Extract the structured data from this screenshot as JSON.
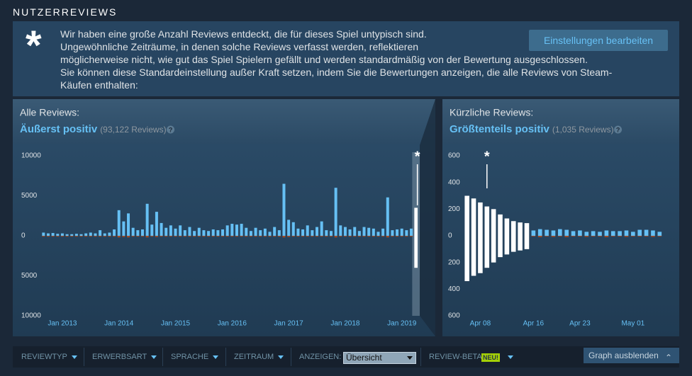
{
  "header": {
    "title": "NUTZERREVIEWS"
  },
  "notice": {
    "icon": "*",
    "lines": [
      "Wir haben eine große Anzahl Reviews entdeckt, die für dieses Spiel untypisch sind.",
      "Ungewöhnliche Zeiträume, in denen solche Reviews verfasst werden, reflektieren",
      "möglicherweise nicht, wie gut das Spiel Spielern gefällt und werden standardmäßig von der Bewertung ausgeschlossen.",
      "Sie können diese Standardeinstellung außer Kraft setzen, indem Sie die Bewertungen anzeigen, die alle Reviews von Steam-",
      "Käufen enthalten:"
    ],
    "button": "Einstellungen bearbeiten"
  },
  "panels": [
    {
      "label": "Alle Reviews:",
      "rating": "Äußerst positiv",
      "count": "(93,122 Reviews)",
      "help_icon": "?",
      "chart": {
        "type": "bar",
        "marker": "*",
        "highlight_band": true,
        "highlight_color": "#ffffff",
        "ylim": [
          -10000,
          10000
        ],
        "yticks": [
          10000,
          5000,
          0,
          {
            "value": -5000,
            "label": "5000"
          },
          {
            "value": -10000,
            "label": "10000"
          }
        ],
        "categories": [
          null,
          null,
          null,
          null,
          "Jan 2013",
          null,
          null,
          null,
          null,
          null,
          null,
          null,
          null,
          null,
          null,
          null,
          "Jan 2014",
          null,
          null,
          null,
          null,
          null,
          null,
          null,
          null,
          null,
          null,
          null,
          "Jan 2015",
          null,
          null,
          null,
          null,
          null,
          null,
          null,
          null,
          null,
          null,
          null,
          "Jan 2016",
          null,
          null,
          null,
          null,
          null,
          null,
          null,
          null,
          null,
          null,
          null,
          "Jan 2017",
          null,
          null,
          null,
          null,
          null,
          null,
          null,
          null,
          null,
          null,
          null,
          "Jan 2018",
          null,
          null,
          null,
          null,
          null,
          null,
          null,
          null,
          null,
          null,
          null,
          "Jan 2019",
          null,
          null,
          null
        ],
        "highlighted": [
          false,
          false,
          false,
          false,
          false,
          false,
          false,
          false,
          false,
          false,
          false,
          false,
          false,
          false,
          false,
          false,
          false,
          false,
          false,
          false,
          false,
          false,
          false,
          false,
          false,
          false,
          false,
          false,
          false,
          false,
          false,
          false,
          false,
          false,
          false,
          false,
          false,
          false,
          false,
          false,
          false,
          false,
          false,
          false,
          false,
          false,
          false,
          false,
          false,
          false,
          false,
          false,
          false,
          false,
          false,
          false,
          false,
          false,
          false,
          false,
          false,
          false,
          false,
          false,
          false,
          false,
          false,
          false,
          false,
          false,
          false,
          false,
          false,
          false,
          false,
          false,
          false,
          false,
          false,
          true
        ],
        "series": [
          {
            "color": "#66c0f4",
            "values": [
              400,
              300,
              350,
              250,
              300,
              200,
              200,
              250,
              200,
              300,
              400,
              300,
              700,
              300,
              400,
              800,
              3200,
              1800,
              2800,
              1000,
              700,
              800,
              4000,
              1400,
              3000,
              1600,
              1000,
              1300,
              900,
              1300,
              700,
              1100,
              600,
              1000,
              700,
              600,
              800,
              700,
              800,
              1300,
              1500,
              1400,
              1500,
              1000,
              600,
              1000,
              700,
              900,
              500,
              1100,
              700,
              6500,
              2000,
              1700,
              900,
              800,
              1300,
              700,
              1100,
              1800,
              700,
              600,
              6000,
              1300,
              1100,
              800,
              1100,
              600,
              1100,
              1000,
              900,
              500,
              900,
              4800,
              700,
              800,
              900,
              700,
              900,
              3500
            ]
          },
          {
            "color": "#a34c25",
            "values": [
              -100,
              -100,
              -100,
              -100,
              -100,
              -100,
              -100,
              -100,
              -100,
              -100,
              -100,
              -100,
              -100,
              -100,
              -100,
              -100,
              -200,
              -150,
              -200,
              -100,
              -100,
              -100,
              -200,
              -100,
              -150,
              -100,
              -100,
              -100,
              -100,
              -100,
              -100,
              -100,
              -100,
              -100,
              -100,
              -100,
              -100,
              -100,
              -100,
              -100,
              -100,
              -100,
              -100,
              -100,
              -100,
              -100,
              -100,
              -100,
              -100,
              -100,
              -100,
              -200,
              -150,
              -100,
              -100,
              -100,
              -100,
              -100,
              -100,
              -100,
              -100,
              -100,
              -200,
              -100,
              -100,
              -100,
              -100,
              -100,
              -100,
              -100,
              -100,
              -100,
              -100,
              -200,
              -100,
              -100,
              -100,
              -100,
              -100,
              -4000
            ]
          }
        ]
      }
    },
    {
      "label": "Kürzliche Reviews:",
      "rating": "Größtenteils positiv",
      "count": "(1,035 Reviews)",
      "help_icon": "?",
      "chart": {
        "type": "bar",
        "marker": "*",
        "highlight_band": false,
        "highlight_color": "#ffffff",
        "ylim": [
          -600,
          600
        ],
        "yticks": [
          600,
          400,
          200,
          0,
          {
            "value": -200,
            "label": "200"
          },
          {
            "value": -400,
            "label": "400"
          },
          {
            "value": -600,
            "label": "600"
          }
        ],
        "categories": [
          null,
          null,
          "Apr 08",
          null,
          null,
          null,
          null,
          null,
          null,
          null,
          "Apr 16",
          null,
          null,
          null,
          null,
          null,
          null,
          "Apr 23",
          null,
          null,
          null,
          null,
          null,
          null,
          null,
          "May 01",
          null,
          null,
          null,
          null
        ],
        "highlighted": [
          true,
          true,
          true,
          true,
          true,
          true,
          true,
          true,
          true,
          true,
          false,
          false,
          false,
          false,
          false,
          false,
          false,
          false,
          false,
          false,
          false,
          false,
          false,
          false,
          false,
          false,
          false,
          false,
          false,
          false
        ],
        "series": [
          {
            "color": "#66c0f4",
            "values": [
              300,
              280,
              250,
              220,
              200,
              160,
              130,
              110,
              100,
              95,
              40,
              50,
              45,
              40,
              50,
              45,
              35,
              40,
              30,
              35,
              30,
              40,
              35,
              35,
              40,
              30,
              45,
              45,
              40,
              30
            ]
          },
          {
            "color": "#a34c25",
            "values": [
              -340,
              -300,
              -280,
              -240,
              -200,
              -160,
              -140,
              -120,
              -110,
              -100,
              -5,
              -10,
              -5,
              -8,
              -5,
              -10,
              -5,
              -5,
              -8,
              -5,
              -5,
              -10,
              -5,
              -5,
              -8,
              -5,
              -5,
              -5,
              -8,
              -5
            ]
          }
        ]
      }
    }
  ],
  "filters": {
    "items": [
      "REVIEWTYP",
      "ERWERBSART",
      "SPRACHE",
      "ZEITRAUM"
    ],
    "display_label": "ANZEIGEN:",
    "display_value": "Übersicht",
    "beta": "REVIEW-BETA",
    "badge": "NEU!",
    "hide_button": "Graph ausblenden"
  }
}
